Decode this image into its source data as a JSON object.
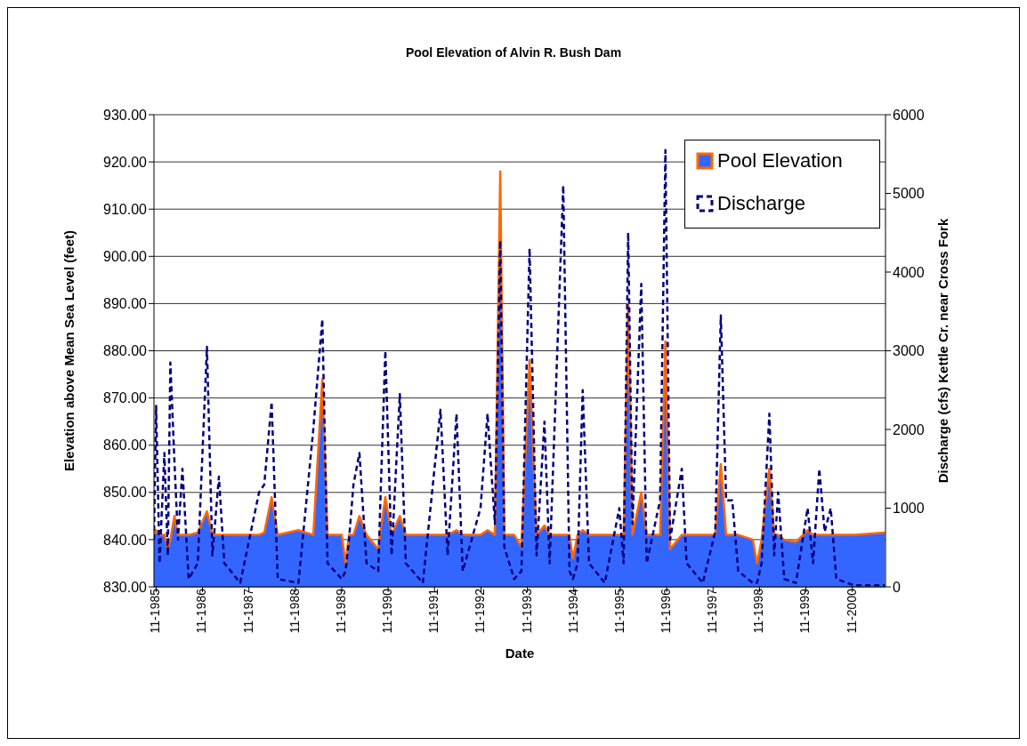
{
  "chart_data": {
    "type": "area",
    "title": "Pool Elevation of Alvin R. Bush Dam",
    "xlabel": "Date",
    "ylabel": "Elevation above Mean Sea Level (feet)",
    "y2label": "Discharge (cfs) Kettle Cr. near Cross Fork",
    "x": [
      "1985-10-15",
      "1985-11-01",
      "1985-11-28",
      "1986-01-05",
      "1986-02-01",
      "1986-02-21",
      "1986-03-25",
      "1986-04-22",
      "1986-05-27",
      "1986-07-15",
      "1986-09-25",
      "1986-12-06",
      "1987-01-18",
      "1987-03-10",
      "1987-04-22",
      "1987-08-25",
      "1988-01-20",
      "1988-03-01",
      "1988-04-28",
      "1988-06-15",
      "1988-11-25",
      "1989-03-22",
      "1989-06-01",
      "1989-07-12",
      "1989-11-01",
      "1989-12-01",
      "1989-12-28",
      "1990-02-01",
      "1990-03-20",
      "1990-05-15",
      "1990-08-15",
      "1990-08-28",
      "1990-10-10",
      "1990-11-28",
      "1991-02-01",
      "1991-03-20",
      "1991-08-01",
      "1991-12-18",
      "1992-02-12",
      "1992-04-22",
      "1992-06-10",
      "1992-10-28",
      "1992-12-22",
      "1993-02-18",
      "1993-04-01",
      "1993-05-04",
      "1993-07-20",
      "1993-09-15",
      "1993-11-18",
      "1994-01-12",
      "1994-03-15",
      "1994-04-25",
      "1994-08-10",
      "1994-09-28",
      "1994-10-25",
      "1994-12-01",
      "1995-01-10",
      "1995-03-01",
      "1995-07-03",
      "1995-10-25",
      "1995-11-28",
      "1996-01-03",
      "1996-02-06",
      "1996-04-15",
      "1996-05-28",
      "1996-09-10",
      "1996-10-22",
      "1996-11-28",
      "1997-02-28",
      "1997-04-07",
      "1997-08-12",
      "1997-11-18",
      "1998-01-01",
      "1998-02-12",
      "1998-04-01",
      "1998-05-18",
      "1998-09-10",
      "1998-10-13",
      "1998-11-18",
      "1999-01-18",
      "1999-02-25",
      "1999-03-28",
      "1999-05-15",
      "1999-08-15",
      "1999-11-15",
      "1999-12-28",
      "2000-02-15",
      "2000-03-28",
      "2000-05-15",
      "2000-06-28",
      "2000-11-15",
      "2001-07-15"
    ],
    "series": [
      {
        "name": "Pool Elevation",
        "color": "#3366ff",
        "values": [
          841,
          842,
          841,
          841,
          838,
          840,
          845,
          841,
          841,
          841,
          841.5,
          846,
          841,
          841,
          841,
          841,
          841,
          841.5,
          849,
          841,
          842,
          841,
          874,
          841,
          841,
          835,
          841,
          841,
          845,
          841,
          838,
          841,
          849,
          841,
          845,
          841,
          841,
          841,
          841,
          842,
          841,
          841,
          842,
          841,
          918,
          841,
          841,
          838.5,
          878,
          841,
          843,
          841,
          841,
          841,
          836,
          841,
          842,
          841,
          841,
          841,
          841,
          890,
          841,
          850,
          841,
          841,
          882,
          838,
          841,
          841,
          841,
          841,
          856,
          841,
          841,
          841,
          840,
          835,
          840,
          855,
          841,
          841,
          840,
          839.5,
          842,
          841,
          841,
          841,
          841,
          841,
          841,
          841.5
        ]
      },
      {
        "type": "line",
        "color": "#ff6600",
        "values": [
          841,
          842,
          841,
          841,
          838,
          840,
          845,
          841,
          841,
          841,
          841.5,
          846,
          841,
          841,
          841,
          841,
          841,
          841.5,
          849,
          841,
          842,
          841,
          874,
          841,
          841,
          835,
          841,
          841,
          845,
          841,
          838,
          841,
          849,
          841,
          845,
          841,
          841,
          841,
          841,
          842,
          841,
          841,
          842,
          841,
          918,
          841,
          841,
          838.5,
          878,
          841,
          843,
          841,
          841,
          841,
          836,
          841,
          842,
          841,
          841,
          841,
          841,
          890,
          841,
          850,
          841,
          841,
          882,
          838,
          841,
          841,
          841,
          841,
          856,
          841,
          841,
          841,
          840,
          835,
          840,
          855,
          841,
          841,
          840,
          839.5,
          842,
          841,
          841,
          841,
          841,
          841,
          841,
          841.5
        ]
      },
      {
        "name": "Discharge",
        "type": "line",
        "axis": "y2",
        "color": "#000080",
        "line_style": "dashed",
        "values": [
          600,
          2300,
          300,
          1700,
          400,
          2850,
          1600,
          600,
          1500,
          100,
          300,
          3050,
          400,
          1400,
          300,
          50,
          1200,
          1300,
          2350,
          100,
          50,
          2000,
          3400,
          300,
          100,
          200,
          600,
          1300,
          1700,
          300,
          200,
          900,
          3000,
          400,
          2450,
          300,
          50,
          2250,
          400,
          2200,
          200,
          1000,
          2200,
          800,
          4400,
          500,
          100,
          200,
          4300,
          400,
          2100,
          300,
          5100,
          200,
          100,
          300,
          2500,
          300,
          50,
          1000,
          300,
          4500,
          800,
          3850,
          300,
          1100,
          5550,
          600,
          1500,
          300,
          50,
          700,
          3450,
          1100,
          1100,
          200,
          50,
          50,
          300,
          2200,
          400,
          1200,
          100,
          50,
          1000,
          300,
          1500,
          700,
          1000,
          100,
          20,
          20
        ]
      }
    ],
    "xlim": [
      "1985-10-15",
      "2001-07-20"
    ],
    "xticks": [
      {
        "value": "1985-11-01",
        "label": "11-1985"
      },
      {
        "value": "1986-11-01",
        "label": "11-1986"
      },
      {
        "value": "1987-11-01",
        "label": "11-1987"
      },
      {
        "value": "1988-11-01",
        "label": "11-1988"
      },
      {
        "value": "1989-11-01",
        "label": "11-1989"
      },
      {
        "value": "1990-11-01",
        "label": "11-1990"
      },
      {
        "value": "1991-11-01",
        "label": "11-1991"
      },
      {
        "value": "1992-11-01",
        "label": "11-1992"
      },
      {
        "value": "1993-11-01",
        "label": "11-1993"
      },
      {
        "value": "1994-11-01",
        "label": "11-1994"
      },
      {
        "value": "1995-11-01",
        "label": "11-1995"
      },
      {
        "value": "1996-11-01",
        "label": "11-1996"
      },
      {
        "value": "1997-11-01",
        "label": "11-1997"
      },
      {
        "value": "1998-11-01",
        "label": "11-1998"
      },
      {
        "value": "1999-11-01",
        "label": "11-1999"
      },
      {
        "value": "2000-11-01",
        "label": "11-2000"
      }
    ],
    "ylim": [
      830,
      930
    ],
    "yticks": [
      {
        "value": 830,
        "label": "830.00"
      },
      {
        "value": 840,
        "label": "840.00"
      },
      {
        "value": 850,
        "label": "850.00"
      },
      {
        "value": 860,
        "label": "860.00"
      },
      {
        "value": 870,
        "label": "870.00"
      },
      {
        "value": 880,
        "label": "880.00"
      },
      {
        "value": 890,
        "label": "890.00"
      },
      {
        "value": 900,
        "label": "900.00"
      },
      {
        "value": 910,
        "label": "910.00"
      },
      {
        "value": 920,
        "label": "920.00"
      },
      {
        "value": 930,
        "label": "930.00"
      }
    ],
    "y2lim": [
      0,
      6000
    ],
    "y2ticks": [
      0,
      1000,
      2000,
      3000,
      4000,
      5000,
      6000
    ],
    "grid": "y",
    "legend": "top right"
  }
}
